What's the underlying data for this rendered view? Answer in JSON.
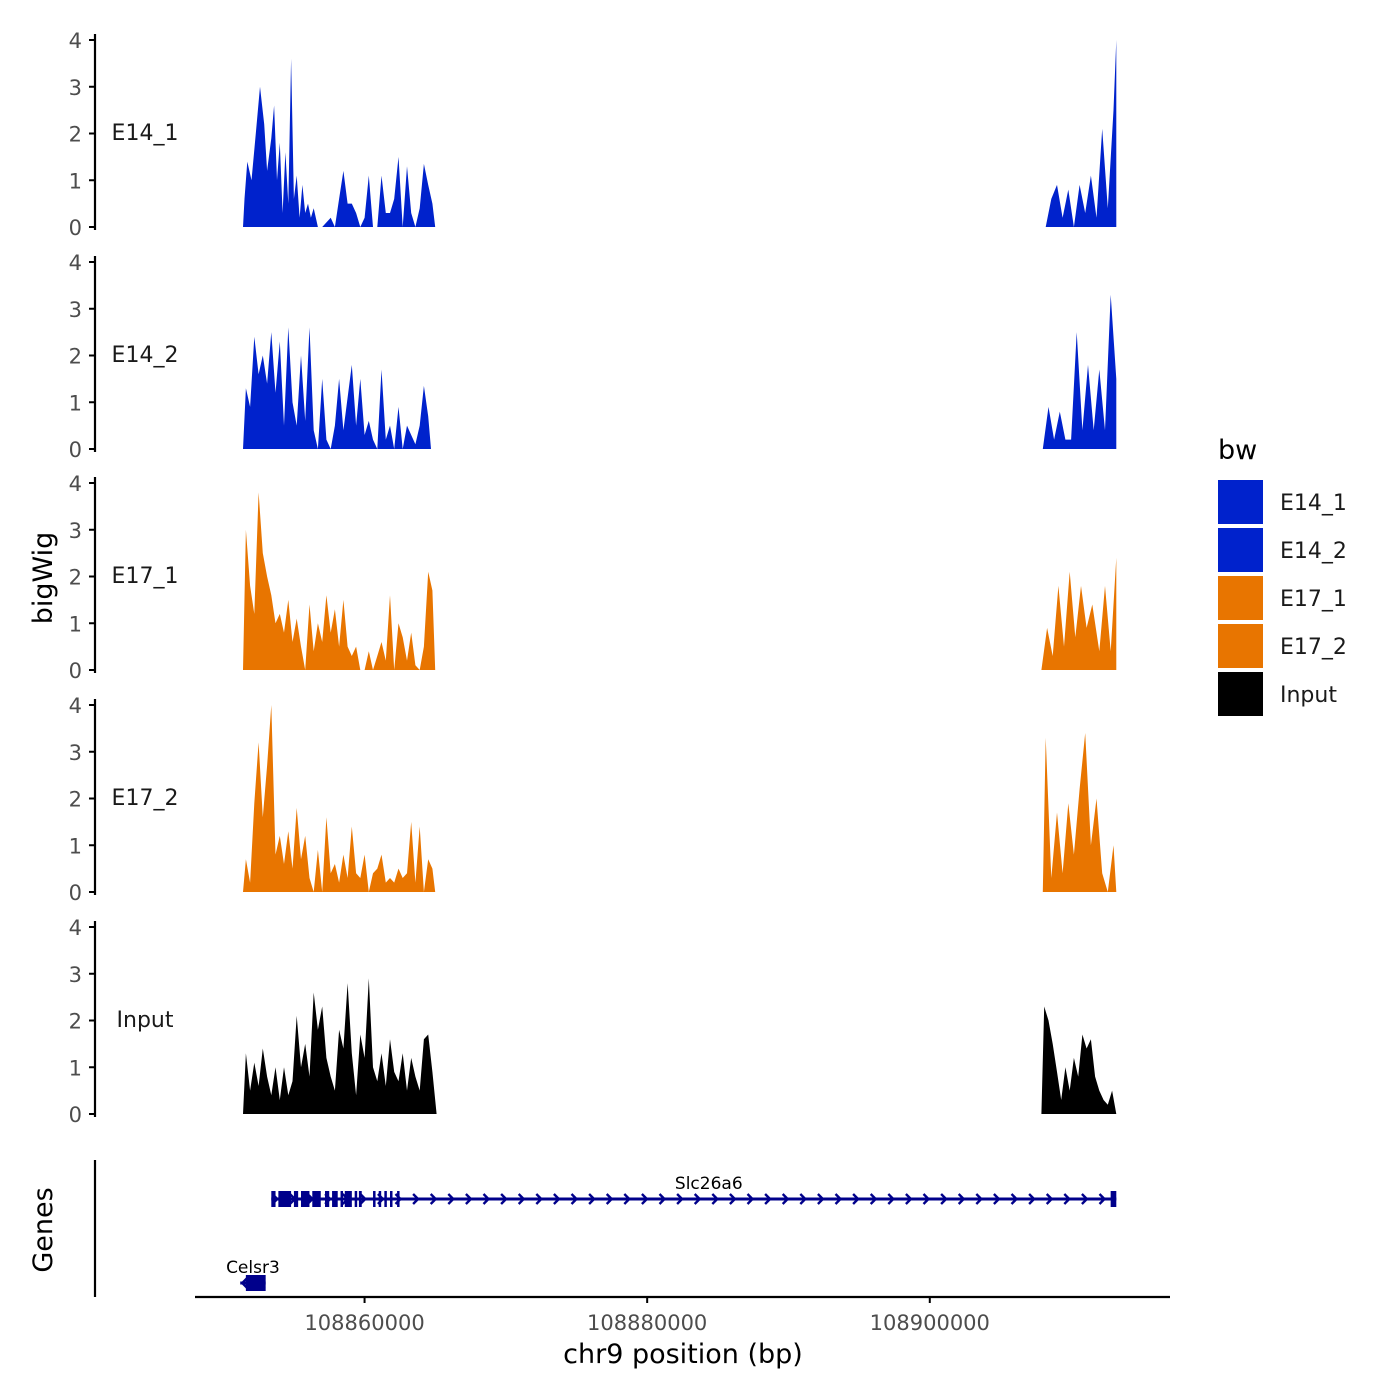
{
  "chart_data": {
    "type": "area",
    "chromosome": "chr9",
    "xlabel": "chr9 position (bp)",
    "ylabel": "bigWig",
    "gene_panel_label": "Genes",
    "xlim": [
      108848000,
      108917000
    ],
    "xticks": [
      108860000,
      108880000,
      108900000
    ],
    "xtick_labels": [
      "108860000",
      "108880000",
      "108900000"
    ],
    "ylim": [
      0,
      4
    ],
    "yticks": [
      0,
      1,
      2,
      3,
      4
    ],
    "ytick_labels": [
      "0",
      "1",
      "2",
      "3",
      "4"
    ],
    "legend": {
      "title": "bw",
      "entries": [
        {
          "label": "E14_1",
          "color": "#0022cc"
        },
        {
          "label": "E14_2",
          "color": "#0022cc"
        },
        {
          "label": "E17_1",
          "color": "#e87500"
        },
        {
          "label": "E17_2",
          "color": "#e87500"
        },
        {
          "label": "Input",
          "color": "#000000"
        }
      ]
    },
    "tracks": [
      {
        "name": "E14_1",
        "color": "#0022cc",
        "x": [
          108851400,
          108851500,
          108851700,
          108852000,
          108852300,
          108852600,
          108852900,
          108853100,
          108853400,
          108853600,
          108853800,
          108854000,
          108854200,
          108854400,
          108854600,
          108854800,
          108855000,
          108855200,
          108855400,
          108855600,
          108855800,
          108856000,
          108856200,
          108856400,
          108856700,
          108857000,
          108857600,
          108857900,
          108858200,
          108858500,
          108858800,
          108859100,
          108859400,
          108859700,
          108860000,
          108860300,
          108860600,
          108860900,
          108861200,
          108861500,
          108861800,
          108862100,
          108862400,
          108862700,
          108863000,
          108863300,
          108863600,
          108863900,
          108864200,
          108864500,
          108864800,
          108865000,
          108908200,
          108908600,
          108909000,
          108909400,
          108909800,
          108910200,
          108910600,
          108911000,
          108911400,
          108911800,
          108912200,
          108912600,
          108913000,
          108913200
        ],
        "y": [
          0,
          0.6,
          1.4,
          1.0,
          2.0,
          3.0,
          2.2,
          1.2,
          1.9,
          2.6,
          1.0,
          1.8,
          0.3,
          1.6,
          0.5,
          3.6,
          0.6,
          1.1,
          0.2,
          0.9,
          0.3,
          0.5,
          0.2,
          0.4,
          0,
          0,
          0.2,
          0,
          0.6,
          1.2,
          0.5,
          0.5,
          0.3,
          0,
          0.2,
          1.1,
          0,
          0,
          1.1,
          0.3,
          0.3,
          0.6,
          1.5,
          0,
          1.3,
          0.3,
          0,
          0.4,
          1.35,
          0.9,
          0.5,
          0,
          0,
          0.6,
          0.9,
          0.2,
          0.8,
          0,
          0.9,
          0.3,
          1.1,
          0.2,
          2.1,
          0.4,
          2.5,
          4.0
        ],
        "gaps": [
          [
            108856700,
            108857600
          ],
          [
            108859700,
            108860000
          ],
          [
            108862700,
            108862900
          ],
          [
            108908200,
            108908200
          ]
        ]
      },
      {
        "name": "E14_2",
        "color": "#0022cc",
        "x": [
          108851400,
          108851600,
          108851900,
          108852200,
          108852500,
          108852800,
          108853100,
          108853400,
          108853700,
          108854000,
          108854300,
          108854600,
          108854900,
          108855200,
          108855500,
          108855800,
          108856100,
          108856400,
          108856700,
          108857000,
          108857300,
          108857600,
          108857900,
          108858200,
          108858500,
          108858800,
          108859100,
          108859400,
          108859700,
          108860000,
          108860300,
          108860600,
          108860900,
          108861200,
          108861500,
          108861800,
          108862100,
          108862400,
          108862700,
          108863000,
          108863300,
          108863600,
          108863900,
          108864200,
          108864500,
          108864700,
          108908000,
          108908400,
          108908800,
          108909200,
          108909600,
          108910000,
          108910400,
          108910800,
          108911200,
          108911600,
          108912000,
          108912400,
          108912800,
          108913200
        ],
        "y": [
          0,
          1.3,
          0.9,
          2.4,
          1.6,
          2.0,
          1.4,
          2.5,
          1.2,
          2.3,
          0.5,
          2.6,
          1.0,
          0.5,
          2.0,
          0.6,
          2.6,
          0.4,
          0,
          1.5,
          0.2,
          0,
          0.5,
          1.5,
          0.4,
          1.1,
          1.8,
          0.5,
          1.5,
          0.3,
          0.6,
          0.2,
          0,
          1.7,
          0.2,
          0.5,
          0,
          0.9,
          0,
          0.5,
          0.3,
          0.1,
          0.5,
          1.35,
          0.7,
          0,
          0,
          0.9,
          0.2,
          0.8,
          0.2,
          0.2,
          2.5,
          0.4,
          1.8,
          0.4,
          1.7,
          0.4,
          3.3,
          1.5
        ],
        "gaps": [
          [
            108856700,
            108857000
          ],
          [
            108860900,
            108861200
          ],
          [
            108862700,
            108862900
          ]
        ]
      },
      {
        "name": "E17_1",
        "color": "#e87500",
        "x": [
          108851400,
          108851600,
          108851900,
          108852200,
          108852500,
          108852800,
          108853100,
          108853400,
          108853700,
          108854000,
          108854300,
          108854600,
          108854900,
          108855200,
          108855500,
          108855800,
          108856100,
          108856400,
          108856700,
          108857000,
          108857300,
          108857600,
          108857900,
          108858200,
          108858500,
          108858800,
          108859100,
          108859400,
          108859700,
          108860000,
          108860300,
          108860600,
          108860900,
          108861200,
          108861500,
          108861800,
          108862100,
          108862400,
          108862700,
          108863000,
          108863300,
          108863600,
          108863900,
          108864200,
          108864500,
          108864800,
          108865000,
          108907900,
          108908300,
          108908700,
          108909100,
          108909500,
          108909900,
          108910300,
          108910700,
          108911100,
          108911500,
          108912000,
          108912400,
          108912800,
          108913200
        ],
        "y": [
          0,
          3.0,
          1.8,
          1.2,
          3.8,
          2.5,
          2.0,
          1.6,
          1.0,
          1.2,
          0.8,
          1.5,
          0.6,
          1.1,
          0.5,
          0,
          1.4,
          0.4,
          1.0,
          0.6,
          1.6,
          0.8,
          1.3,
          0.5,
          1.5,
          0.5,
          0.3,
          0.5,
          0,
          0,
          0.4,
          0,
          0.3,
          0.6,
          0.2,
          1.6,
          0,
          1.0,
          0.7,
          0.2,
          0.8,
          0.1,
          0,
          0.5,
          2.1,
          1.7,
          0,
          0,
          0.9,
          0.3,
          1.8,
          0.5,
          2.1,
          0.7,
          1.8,
          0.9,
          1.4,
          0.4,
          1.8,
          0.4,
          2.4
        ],
        "gaps": [
          [
            108860000,
            108860300
          ]
        ]
      },
      {
        "name": "E17_2",
        "color": "#e87500",
        "x": [
          108851400,
          108851600,
          108851900,
          108852200,
          108852500,
          108852800,
          108853100,
          108853400,
          108853700,
          108854000,
          108854300,
          108854600,
          108854900,
          108855200,
          108855500,
          108855800,
          108856100,
          108856400,
          108856700,
          108857000,
          108857300,
          108857600,
          108857900,
          108858200,
          108858500,
          108858800,
          108859100,
          108859400,
          108859700,
          108860000,
          108860300,
          108860600,
          108860900,
          108861200,
          108861500,
          108861800,
          108862100,
          108862400,
          108862700,
          108863000,
          108863300,
          108863600,
          108863900,
          108864200,
          108864500,
          108864800,
          108865000,
          108908000,
          108908200,
          108908600,
          108909000,
          108909400,
          108909800,
          108910200,
          108910600,
          108911000,
          108911400,
          108911800,
          108912200,
          108912600,
          108913000,
          108913200
        ],
        "y": [
          0,
          0.7,
          0.2,
          1.9,
          3.2,
          1.6,
          2.7,
          4.0,
          0.8,
          1.2,
          0.6,
          1.3,
          0.5,
          1.8,
          0.7,
          1.2,
          0.3,
          0,
          0.9,
          0,
          1.6,
          0.4,
          0.6,
          0.2,
          0.8,
          0.3,
          1.4,
          0.4,
          0.3,
          0.8,
          0,
          0.4,
          0.5,
          0.8,
          0.2,
          0.3,
          0.2,
          0.5,
          0.3,
          0.4,
          1.5,
          0.2,
          1.4,
          0,
          0.7,
          0.5,
          0,
          0,
          3.3,
          0.3,
          1.7,
          0.4,
          1.9,
          0.8,
          2.2,
          3.4,
          1.0,
          2.0,
          0.4,
          0,
          1.0,
          0
        ],
        "gaps": [
          [
            108856400,
            108857000
          ],
          [
            108859900,
            108860300
          ]
        ]
      },
      {
        "name": "Input",
        "color": "#000000",
        "x": [
          108851400,
          108851600,
          108851900,
          108852200,
          108852500,
          108852800,
          108853100,
          108853400,
          108853700,
          108854000,
          108854300,
          108854600,
          108854900,
          108855200,
          108855500,
          108855800,
          108856100,
          108856400,
          108856700,
          108857000,
          108857300,
          108857600,
          108857900,
          108858200,
          108858500,
          108858800,
          108859100,
          108859400,
          108859700,
          108860000,
          108860300,
          108860600,
          108860900,
          108861200,
          108861500,
          108861800,
          108862100,
          108862400,
          108862700,
          108863000,
          108863300,
          108863600,
          108863900,
          108864200,
          108864500,
          108864800,
          108865100,
          108907900,
          108908100,
          108908400,
          108908700,
          108909000,
          108909300,
          108909600,
          108909900,
          108910200,
          108910500,
          108910800,
          108911100,
          108911400,
          108911700,
          108912000,
          108912300,
          108912600,
          108912900,
          108913200
        ],
        "y": [
          0,
          1.3,
          0.5,
          1.1,
          0.6,
          1.4,
          0.8,
          0.4,
          1.0,
          0.3,
          1.0,
          0.4,
          0.7,
          2.1,
          1.0,
          1.5,
          0.8,
          2.6,
          1.8,
          2.3,
          1.2,
          0.8,
          0.5,
          1.8,
          1.4,
          2.8,
          1.3,
          0.4,
          1.7,
          1.2,
          2.9,
          1.0,
          0.7,
          1.3,
          0.6,
          1.6,
          0.9,
          0.7,
          1.3,
          0.5,
          1.2,
          0.8,
          0.5,
          1.6,
          1.7,
          0.9,
          0,
          0,
          2.3,
          2.0,
          1.5,
          0.9,
          0.3,
          1.0,
          0.5,
          1.2,
          0.8,
          1.7,
          1.4,
          1.6,
          0.8,
          0.5,
          0.3,
          0.2,
          0.5,
          0
        ],
        "gaps": []
      }
    ],
    "genes": [
      {
        "name": "Slc26a6",
        "strand": "+",
        "row": 0,
        "start": 108853400,
        "end": 108913200,
        "exons": [
          [
            108853400,
            108853700
          ],
          [
            108853900,
            108854800
          ],
          [
            108855000,
            108855300
          ],
          [
            108855500,
            108856100
          ],
          [
            108856300,
            108856900
          ],
          [
            108857200,
            108857500
          ],
          [
            108857700,
            108858100
          ],
          [
            108858300,
            108858400
          ],
          [
            108858600,
            108859100
          ],
          [
            108859300,
            108859400
          ],
          [
            108859600,
            108859800
          ],
          [
            108860600,
            108860700
          ],
          [
            108861000,
            108861100
          ],
          [
            108861400,
            108861500
          ],
          [
            108861800,
            108861900
          ],
          [
            108862300,
            108862400
          ],
          [
            108912800,
            108913200
          ]
        ]
      },
      {
        "name": "Celsr3",
        "strand": "-",
        "row": 1,
        "start": 108851200,
        "end": 108853000,
        "exons": [
          [
            108851600,
            108853000
          ]
        ]
      }
    ]
  }
}
